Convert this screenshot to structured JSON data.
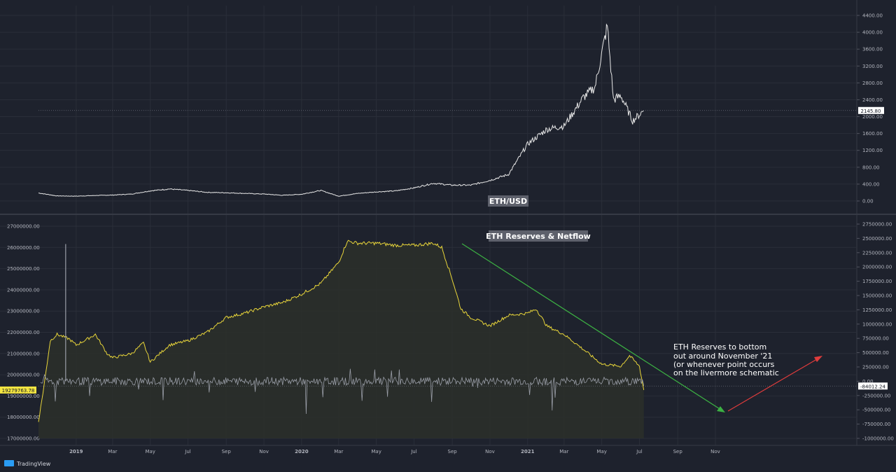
{
  "platform": {
    "brand": "TradingView"
  },
  "colors": {
    "background": "#1e222d",
    "grid": "#2a2e39",
    "price_line": "#e8e8e8",
    "reserves_line": "#e8d53a",
    "reserves_fill": "#2b2f2a",
    "netflow_line": "#9a9ea8",
    "trend_down": "#3cb043",
    "trend_up": "#e03c3c",
    "label_box": "#5d606b",
    "highlight_tag": "#f5e642"
  },
  "x_axis": {
    "ticks": [
      "2019",
      "Mar",
      "May",
      "Jul",
      "Sep",
      "Nov",
      "2020",
      "Mar",
      "May",
      "Jul",
      "Sep",
      "Nov",
      "2021",
      "Mar",
      "May",
      "Jul",
      "Sep",
      "Nov"
    ]
  },
  "annotations": {
    "price_label": "ETH/USD",
    "reserves_label": "ETH Reserves & Netflow",
    "note": [
      "ETH Reserves to bottom",
      "out around November '21",
      "(or whenever point occurs",
      "on the livermore schematic"
    ]
  },
  "chart_data": [
    {
      "type": "line",
      "title": "",
      "series": [
        {
          "name": "ETH/USD",
          "x": [
            "2018-11",
            "2018-12",
            "2019-01",
            "2019-02",
            "2019-03",
            "2019-04",
            "2019-05",
            "2019-06",
            "2019-07",
            "2019-08",
            "2019-09",
            "2019-10",
            "2019-11",
            "2019-12",
            "2020-01",
            "2020-02",
            "2020-03",
            "2020-04",
            "2020-05",
            "2020-06",
            "2020-07",
            "2020-08",
            "2020-09",
            "2020-10",
            "2020-11",
            "2020-12",
            "2021-01",
            "2021-02",
            "2021-03",
            "2021-04",
            "2021-04-20",
            "2021-05-10",
            "2021-05-20",
            "2021-06",
            "2021-06-20",
            "2021-07-08"
          ],
          "values": [
            190,
            120,
            115,
            130,
            140,
            165,
            240,
            285,
            250,
            205,
            195,
            180,
            165,
            135,
            160,
            250,
            115,
            180,
            215,
            240,
            310,
            420,
            375,
            375,
            490,
            630,
            1350,
            1700,
            1780,
            2450,
            2700,
            4150,
            2400,
            2500,
            1900,
            2145.8
          ]
        }
      ],
      "ylim": [
        0,
        4400
      ],
      "y_ticks": [
        "4400.00",
        "4000.00",
        "3600.00",
        "3200.00",
        "2800.00",
        "2400.00",
        "2000.00",
        "1600.00",
        "1200.00",
        "800.00",
        "400.00",
        "0.00"
      ],
      "last_value_label": "2145.80"
    },
    {
      "type": "area",
      "title": "",
      "series": [
        {
          "name": "ETH Reserves",
          "x": [
            "2018-11",
            "2018-11-10",
            "2018-11-20",
            "2018-12",
            "2018-12-20",
            "2019-01",
            "2019-01-20",
            "2019-02",
            "2019-02-20",
            "2019-03",
            "2019-04",
            "2019-04-20",
            "2019-05",
            "2019-06",
            "2019-07",
            "2019-08",
            "2019-09",
            "2019-10",
            "2019-11",
            "2019-12",
            "2020-01",
            "2020-02",
            "2020-03",
            "2020-03-15",
            "2020-04",
            "2020-05",
            "2020-06",
            "2020-07",
            "2020-08",
            "2020-08-15",
            "2020-09",
            "2020-09-15",
            "2020-10",
            "2020-11",
            "2020-12",
            "2021-01",
            "2021-01-15",
            "2021-02",
            "2021-03",
            "2021-04",
            "2021-05",
            "2021-06",
            "2021-06-15",
            "2021-07",
            "2021-07-08"
          ],
          "values": [
            17800000,
            19500000,
            21600000,
            21900000,
            21700000,
            21400000,
            21700000,
            21900000,
            21000000,
            20800000,
            21000000,
            21500000,
            20600000,
            21400000,
            21600000,
            22000000,
            22700000,
            22900000,
            23200000,
            23400000,
            23800000,
            24300000,
            25300000,
            26300000,
            26200000,
            26200000,
            26100000,
            26100000,
            26200000,
            26000000,
            24500000,
            23100000,
            22700000,
            22300000,
            22800000,
            22900000,
            23100000,
            22300000,
            21900000,
            21200000,
            20500000,
            20400000,
            20900000,
            20400000,
            19279763.78
          ],
          "last_value_label": "19279763.78"
        },
        {
          "name": "ETH Netflow",
          "x": [
            "2018-11",
            "2019-01",
            "2019-07",
            "2020-01",
            "2020-07",
            "2021-01",
            "2021-07-08"
          ],
          "values": [
            0,
            0,
            0,
            0,
            0,
            0,
            -84012.24
          ],
          "last_value_label": "-84012.24"
        }
      ],
      "ylim_left": [
        17000000,
        27000000
      ],
      "ylim_right": [
        -1000000,
        2750000
      ],
      "y_ticks_left": [
        "27000000.00",
        "26000000.00",
        "25000000.00",
        "24000000.00",
        "23000000.00",
        "22000000.00",
        "21000000.00",
        "20000000.00",
        "19000000.00",
        "18000000.00",
        "17000000.00"
      ],
      "y_ticks_right": [
        "2750000.00",
        "2500000.00",
        "2250000.00",
        "2000000.00",
        "1750000.00",
        "1500000.00",
        "1250000.00",
        "1000000.00",
        "750000.00",
        "500000.00",
        "250000.00",
        "0.00",
        "-250000.00",
        "-500000.00",
        "-750000.00",
        "-1000000.00"
      ]
    }
  ]
}
